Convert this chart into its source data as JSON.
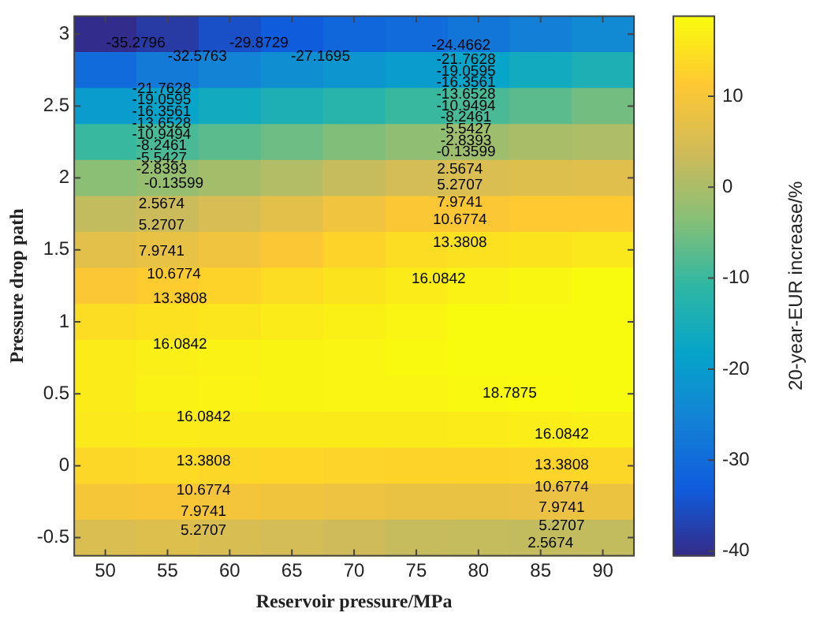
{
  "chart_data": {
    "type": "heatmap",
    "xlabel": "Reservoir pressure/MPa",
    "ylabel": "Pressure drop path",
    "clabel": "20-year-EUR increase/%",
    "categories": [
      "50",
      "55",
      "60",
      "65",
      "70",
      "75",
      "80",
      "85",
      "90"
    ],
    "y_categories": [
      "3",
      null,
      "2.5",
      null,
      "2",
      null,
      "1.5",
      null,
      "1",
      null,
      "0.5",
      null,
      "0",
      null,
      "-0.5"
    ],
    "clim": [
      -40.5,
      18.8
    ],
    "cticks": [
      -40,
      -30,
      -20,
      -10,
      0,
      10
    ],
    "cells": [
      [
        -40,
        -38,
        -35,
        -33,
        -31,
        -30,
        -28,
        -26,
        -24
      ],
      [
        -30,
        -27,
        -25,
        -23,
        -21.5,
        -20,
        -18,
        -16,
        -14
      ],
      [
        -20,
        -18,
        -16,
        -14,
        -12,
        -10,
        -8.5,
        -7,
        -5
      ],
      [
        -10,
        -8.5,
        -7,
        -5.5,
        -4,
        -2.5,
        -1,
        0,
        0.5
      ],
      [
        -3,
        -2,
        -0.5,
        1,
        3,
        4.5,
        5.5,
        6,
        6.5
      ],
      [
        2.5,
        3.5,
        5,
        7,
        9,
        11,
        11,
        11.5,
        11.5
      ],
      [
        7,
        7.8,
        9,
        11,
        13,
        14.5,
        15,
        15.5,
        16
      ],
      [
        11,
        12,
        13,
        14.5,
        15.5,
        16.5,
        17.5,
        18.2,
        18.8
      ],
      [
        14.5,
        15,
        15.8,
        16.5,
        17.2,
        18,
        18.8,
        19.2,
        19.5
      ],
      [
        16.5,
        17,
        17.3,
        17.8,
        18,
        18.5,
        19,
        19.3,
        19.5
      ],
      [
        16.5,
        17.5,
        17.6,
        17.8,
        18,
        18,
        18.3,
        18.7,
        19
      ],
      [
        16.2,
        16.5,
        16.4,
        16.3,
        16.3,
        16.3,
        16.5,
        16.7,
        17
      ],
      [
        13.5,
        14,
        13.6,
        13.4,
        13.2,
        13,
        13,
        13.2,
        13.5
      ],
      [
        10,
        10.5,
        9.8,
        9.2,
        8.6,
        8,
        8,
        8.2,
        8.5
      ],
      [
        5.5,
        6,
        5.2,
        4.5,
        3.8,
        3,
        2.8,
        2.6,
        2.5
      ]
    ],
    "legend": false,
    "annotations": [
      "-35.2796",
      "-32.5763",
      "-29.8729",
      "-27.1695",
      "-21.7628",
      "-19.0595",
      "-16.3561",
      "-13.6528",
      "-10.9494",
      "-8.2461",
      "-5.5427",
      "-2.8393",
      "-0.13599",
      "2.5674",
      "5.2707",
      "7.9741",
      "10.6774",
      "13.3808",
      "16.0842",
      "-24.4662",
      "-21.7628",
      "-19.0595",
      "-16.3561",
      "-13.6528",
      "-10.9494",
      "-8.2461",
      "-5.5427",
      "-2.8393",
      "-0.13599",
      "2.5674",
      "5.2707",
      "7.9741",
      "10.6774",
      "13.3808",
      "16.0842",
      "18.7875",
      "16.0842",
      "16.0842",
      "13.3808",
      "13.3808",
      "10.6774",
      "10.6774",
      "7.9741",
      "7.9741",
      "5.2707",
      "5.2707",
      "2.5674"
    ]
  }
}
